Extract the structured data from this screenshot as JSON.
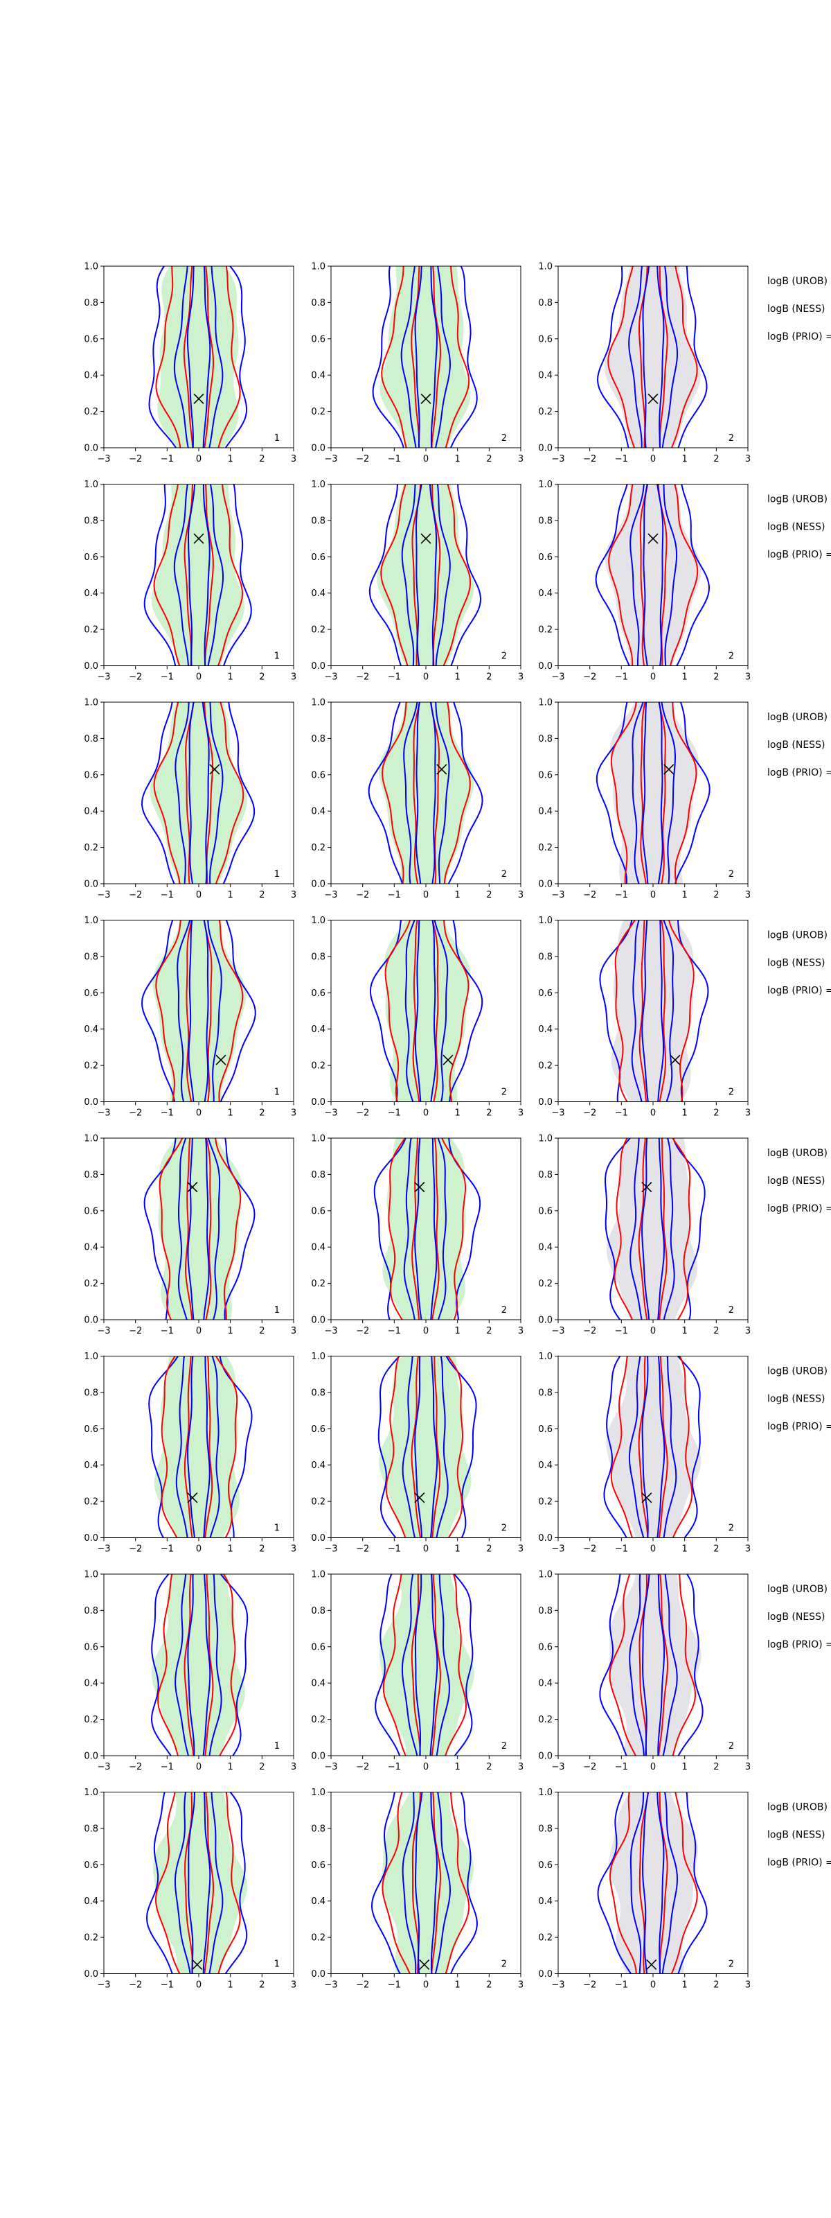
{
  "chart_data": {
    "type": "contour",
    "title": "",
    "xlabel": "",
    "ylabel": "",
    "xlim": [
      -3,
      3
    ],
    "ylim": [
      0,
      1
    ],
    "x_ticks": [
      "−3",
      "−2",
      "−1",
      "0",
      "1",
      "2",
      "3"
    ],
    "y_ticks": [
      "0.0",
      "0.2",
      "0.4",
      "0.6",
      "0.8",
      "1.0"
    ],
    "grid": false,
    "legend": "none",
    "colors": {
      "blue": "#0000ff",
      "red": "#ff0000",
      "fill_green": "#c9efc9",
      "fill_grey": "#e1e1e6",
      "marker": "#000000"
    },
    "column_corner_labels": [
      "1",
      "2",
      "2"
    ],
    "row_notes": [
      "logB (UROB)",
      "logB (NESS)",
      "logB (PRIO) ="
    ],
    "rows": [
      {
        "marker": [
          0.0,
          0.27
        ]
      },
      {
        "marker": [
          0.0,
          0.7
        ]
      },
      {
        "marker": [
          0.5,
          0.63
        ]
      },
      {
        "marker": [
          0.7,
          0.23
        ]
      },
      {
        "marker": [
          -0.2,
          0.73
        ]
      },
      {
        "marker": [
          -0.2,
          0.22
        ]
      },
      {
        "marker": [
          null,
          null
        ]
      },
      {
        "marker": [
          -0.05,
          0.05
        ]
      }
    ]
  }
}
